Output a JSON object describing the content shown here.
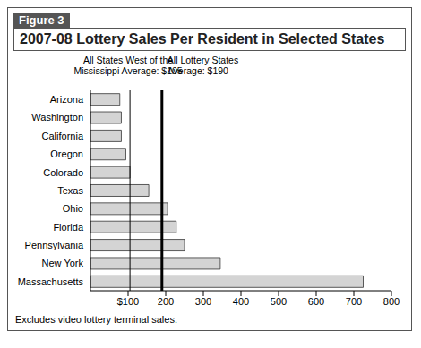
{
  "chart_data": {
    "type": "bar",
    "orientation": "horizontal",
    "subtitle": "Figure 3",
    "title": "2007-08 Lottery Sales Per Resident in Selected States",
    "categories": [
      "Arizona",
      "Washington",
      "California",
      "Oregon",
      "Colorado",
      "Texas",
      "Ohio",
      "Florida",
      "Pennsylvania",
      "New York",
      "Massachusetts"
    ],
    "values": [
      78,
      82,
      82,
      94,
      105,
      155,
      205,
      228,
      250,
      345,
      725
    ],
    "color": "#d4d4d4",
    "xlim": [
      0,
      800
    ],
    "xticks": [
      {
        "value": 100,
        "label": "$100"
      },
      200,
      300,
      400,
      500,
      600,
      700,
      800
    ],
    "grid": false,
    "reference_lines": [
      {
        "value": 105,
        "label": "All States West of the Mississippi Average: $105"
      },
      {
        "value": 190,
        "label": "All Lottery States Average: $190"
      }
    ],
    "footnote": "Excludes video lottery terminal sales."
  }
}
